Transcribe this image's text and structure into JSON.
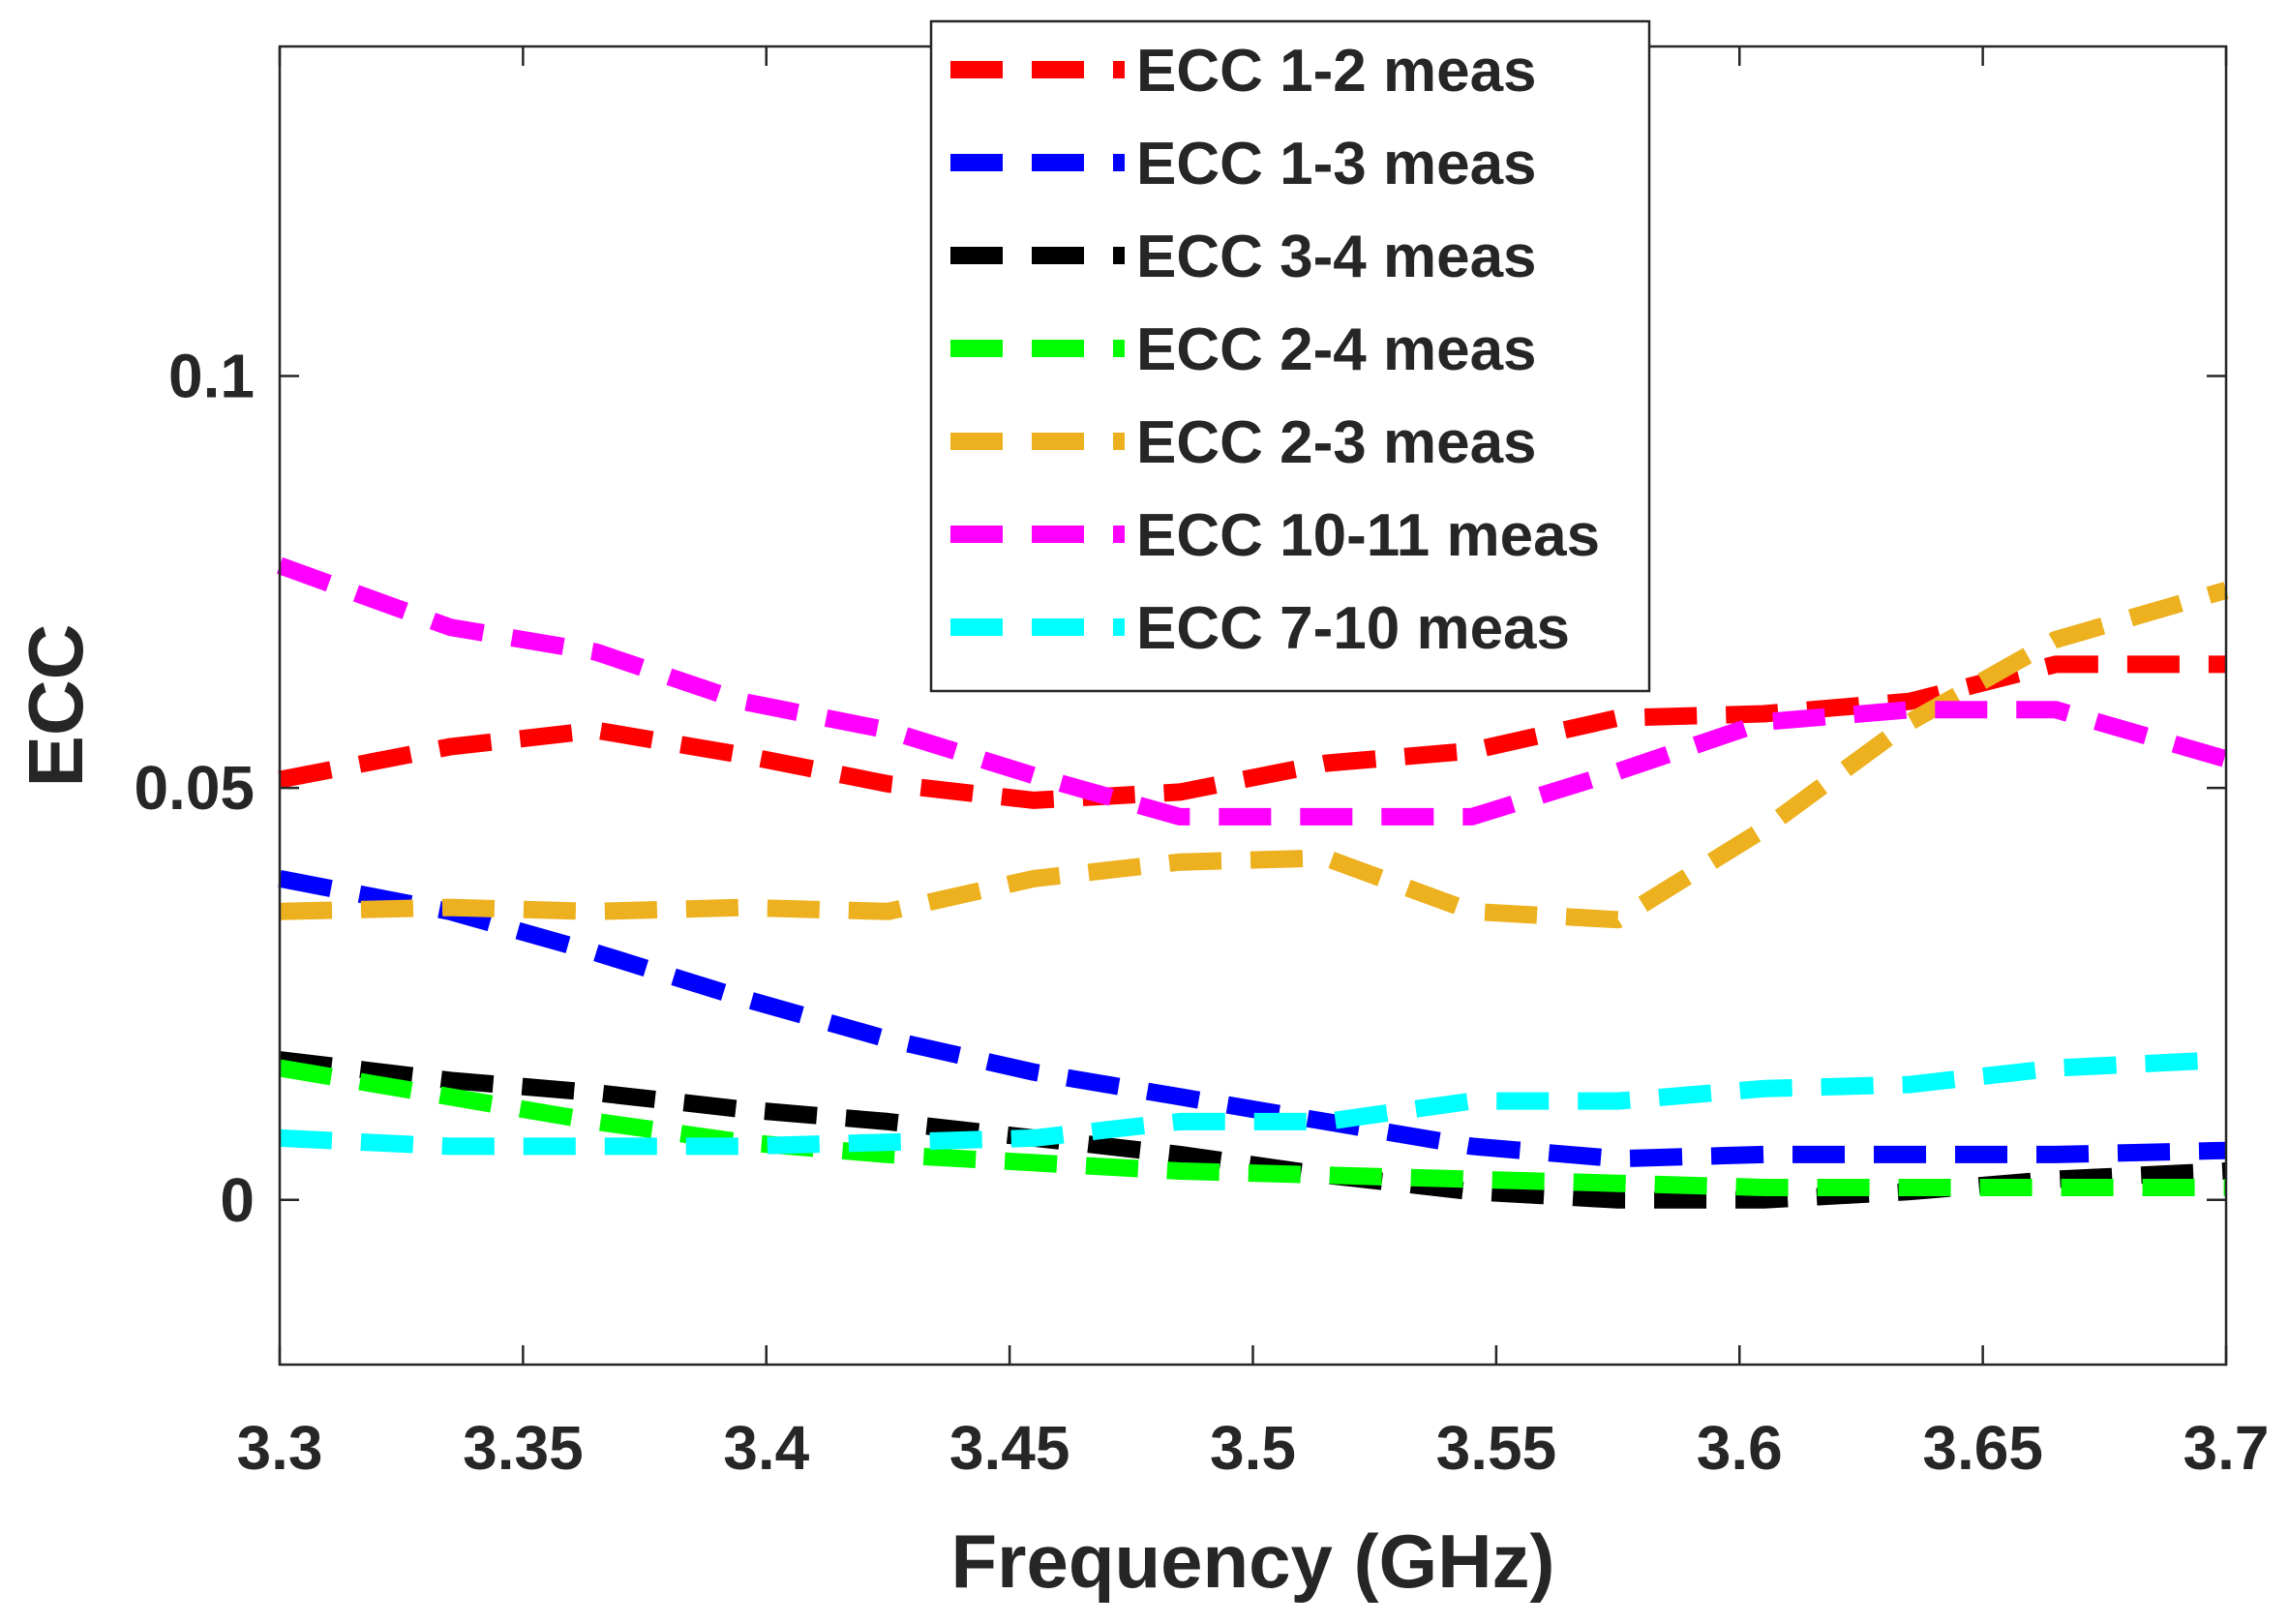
{
  "chart_data": {
    "type": "line",
    "title": "",
    "xlabel": "Frequency (GHz)",
    "ylabel": "ECC",
    "xlim": [
      3.3,
      3.7
    ],
    "ylim": [
      -0.02,
      0.14
    ],
    "x_ticks": [
      3.3,
      3.35,
      3.4,
      3.45,
      3.5,
      3.55,
      3.6,
      3.65,
      3.7
    ],
    "x_tick_labels": [
      "3.3",
      "3.35",
      "3.4",
      "3.45",
      "3.5",
      "3.55",
      "3.6",
      "3.65",
      "3.7"
    ],
    "y_ticks": [
      0,
      0.05,
      0.1
    ],
    "y_tick_labels": [
      "0",
      "0.05",
      "0.1"
    ],
    "grid": false,
    "legend_position": "top-center",
    "series": [
      {
        "name": "ECC 1-2 meas",
        "color": "#ff0000",
        "x": [
          3.3,
          3.335,
          3.365,
          3.395,
          3.425,
          3.455,
          3.485,
          3.515,
          3.545,
          3.575,
          3.605,
          3.635,
          3.665,
          3.7
        ],
        "y": [
          0.051,
          0.055,
          0.057,
          0.054,
          0.0505,
          0.0485,
          0.0495,
          0.053,
          0.0545,
          0.0585,
          0.059,
          0.0605,
          0.065,
          0.065
        ]
      },
      {
        "name": "ECC 1-3 meas",
        "color": "#0000ff",
        "x": [
          3.3,
          3.335,
          3.365,
          3.395,
          3.425,
          3.455,
          3.485,
          3.515,
          3.545,
          3.575,
          3.605,
          3.635,
          3.665,
          3.7
        ],
        "y": [
          0.039,
          0.035,
          0.03,
          0.0245,
          0.0195,
          0.0155,
          0.0125,
          0.0095,
          0.0065,
          0.005,
          0.0055,
          0.0055,
          0.0055,
          0.006
        ]
      },
      {
        "name": "ECC 3-4 meas",
        "color": "#000000",
        "x": [
          3.3,
          3.335,
          3.365,
          3.395,
          3.425,
          3.455,
          3.485,
          3.515,
          3.545,
          3.575,
          3.605,
          3.635,
          3.665,
          3.7
        ],
        "y": [
          0.017,
          0.0145,
          0.013,
          0.011,
          0.0095,
          0.0075,
          0.0055,
          0.003,
          0.001,
          0.0,
          0.0,
          0.001,
          0.0025,
          0.0035
        ]
      },
      {
        "name": "ECC 2-4 meas",
        "color": "#00ff00",
        "x": [
          3.3,
          3.335,
          3.365,
          3.395,
          3.425,
          3.455,
          3.485,
          3.515,
          3.545,
          3.575,
          3.605,
          3.635,
          3.665,
          3.7
        ],
        "y": [
          0.016,
          0.0125,
          0.0095,
          0.007,
          0.0055,
          0.0045,
          0.0035,
          0.003,
          0.0025,
          0.002,
          0.0015,
          0.0015,
          0.0015,
          0.0015
        ]
      },
      {
        "name": "ECC 2-3 meas",
        "color": "#edb120",
        "x": [
          3.3,
          3.335,
          3.365,
          3.395,
          3.425,
          3.455,
          3.485,
          3.515,
          3.545,
          3.575,
          3.605,
          3.635,
          3.665,
          3.7
        ],
        "y": [
          0.035,
          0.0355,
          0.035,
          0.0355,
          0.035,
          0.039,
          0.041,
          0.0415,
          0.035,
          0.034,
          0.045,
          0.058,
          0.068,
          0.074
        ]
      },
      {
        "name": "ECC 10-11 meas",
        "color": "#ff00ff",
        "x": [
          3.3,
          3.335,
          3.365,
          3.395,
          3.425,
          3.455,
          3.485,
          3.515,
          3.545,
          3.575,
          3.605,
          3.635,
          3.665,
          3.7
        ],
        "y": [
          0.077,
          0.0695,
          0.0665,
          0.0605,
          0.057,
          0.0515,
          0.0465,
          0.0465,
          0.0465,
          0.052,
          0.058,
          0.0595,
          0.0595,
          0.0535
        ]
      },
      {
        "name": "ECC 7-10 meas",
        "color": "#00ffff",
        "x": [
          3.3,
          3.335,
          3.365,
          3.395,
          3.425,
          3.455,
          3.485,
          3.515,
          3.545,
          3.575,
          3.605,
          3.635,
          3.665,
          3.7
        ],
        "y": [
          0.0075,
          0.0065,
          0.0065,
          0.0065,
          0.007,
          0.0075,
          0.0095,
          0.0095,
          0.012,
          0.012,
          0.0135,
          0.014,
          0.016,
          0.017
        ]
      }
    ]
  }
}
